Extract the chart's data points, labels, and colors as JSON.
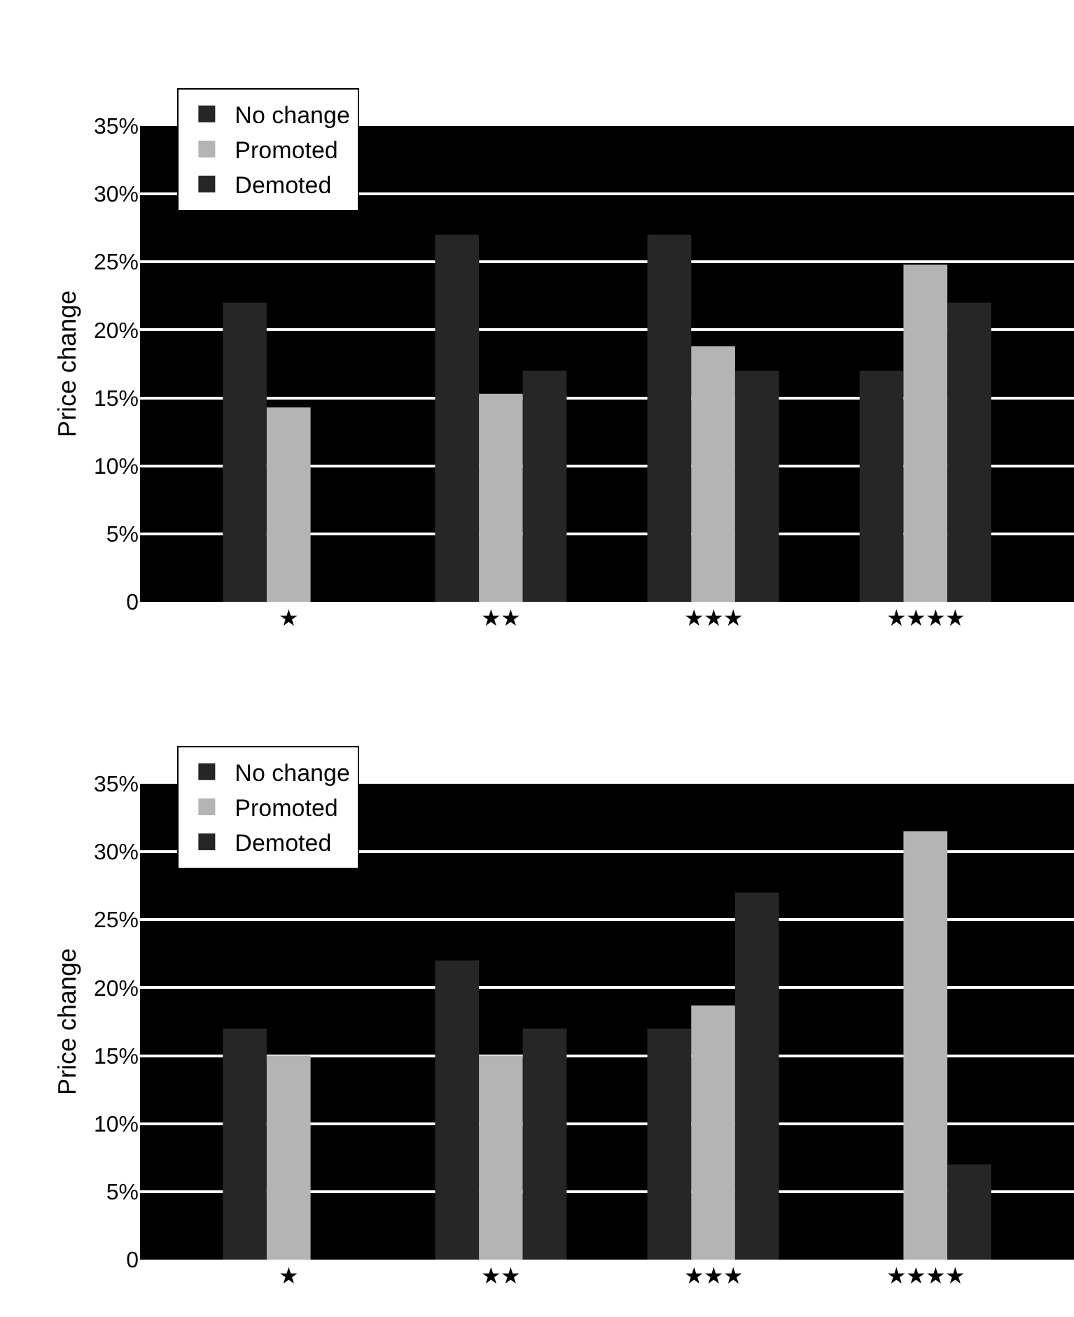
{
  "chart_data": [
    {
      "type": "bar",
      "ylabel": "Price change",
      "categories": [
        "★",
        "★★",
        "★★★",
        "★★★★"
      ],
      "series": [
        {
          "name": "No change",
          "color": "#262626",
          "values": [
            22,
            27,
            27,
            17
          ]
        },
        {
          "name": "Promoted",
          "color": "#b4b4b4",
          "values": [
            14.3,
            15.3,
            18.8,
            24.8
          ]
        },
        {
          "name": "Demoted",
          "color": "#262626",
          "values": [
            0,
            17,
            17,
            22
          ]
        }
      ],
      "ylim": [
        0,
        35
      ],
      "yticks": [
        0,
        {
          "value": 5,
          "label": "5%"
        },
        {
          "value": 10,
          "label": "10%"
        },
        {
          "value": 15,
          "label": "15%"
        },
        {
          "value": 20,
          "label": "20%"
        },
        {
          "value": 25,
          "label": "25%"
        },
        {
          "value": 30,
          "label": "30%"
        },
        {
          "value": 35,
          "label": "35%"
        }
      ],
      "grid": "y",
      "legend": "top left"
    },
    {
      "type": "bar",
      "ylabel": "Price change",
      "categories": [
        "★",
        "★★",
        "★★★",
        "★★★★"
      ],
      "series": [
        {
          "name": "No change",
          "color": "#262626",
          "values": [
            17,
            22,
            17,
            0
          ]
        },
        {
          "name": "Promoted",
          "color": "#b4b4b4",
          "values": [
            15,
            15,
            18.7,
            31.5
          ]
        },
        {
          "name": "Demoted",
          "color": "#262626",
          "values": [
            0,
            17,
            27,
            7
          ]
        }
      ],
      "ylim": [
        0,
        35
      ],
      "yticks": [
        0,
        {
          "value": 5,
          "label": "5%"
        },
        {
          "value": 10,
          "label": "10%"
        },
        {
          "value": 15,
          "label": "15%"
        },
        {
          "value": 20,
          "label": "20%"
        },
        {
          "value": 25,
          "label": "25%"
        },
        {
          "value": 30,
          "label": "30%"
        },
        {
          "value": 35,
          "label": "35%"
        }
      ],
      "grid": "y",
      "legend": "top left"
    }
  ]
}
